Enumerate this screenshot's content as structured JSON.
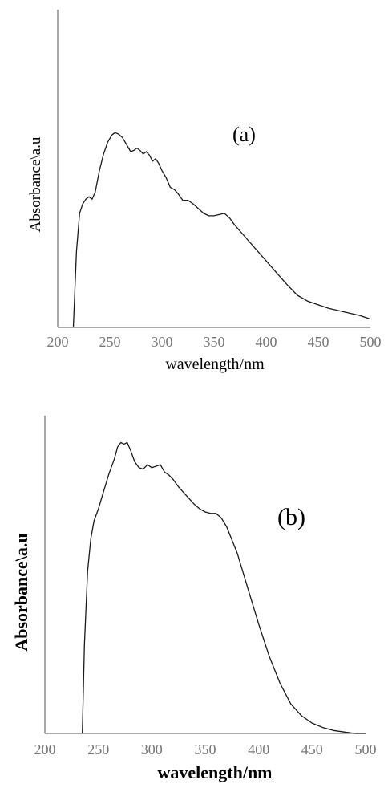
{
  "chart_data": [
    {
      "type": "line",
      "annotation": "(a)",
      "xlabel": "wavelength/nm",
      "ylabel": "Absorbance\\a.u",
      "xlim": [
        200,
        500
      ],
      "ylim": [
        0,
        1
      ],
      "xticks": [
        "200",
        "250",
        "300",
        "350",
        "400",
        "450",
        "500"
      ],
      "grid": false,
      "series": [
        {
          "x": [
            215,
            218,
            221,
            224,
            227,
            230,
            233,
            236,
            240,
            244,
            248,
            252,
            255,
            258,
            262,
            266,
            270,
            273,
            276,
            279,
            282,
            285,
            288,
            291,
            294,
            297,
            300,
            304,
            308,
            312,
            316,
            320,
            325,
            330,
            335,
            340,
            345,
            350,
            355,
            360,
            365,
            370,
            380,
            390,
            400,
            410,
            420,
            430,
            440,
            450,
            460,
            470,
            480,
            490,
            500
          ],
          "values": [
            0.0,
            0.32,
            0.48,
            0.52,
            0.54,
            0.55,
            0.54,
            0.57,
            0.66,
            0.73,
            0.78,
            0.81,
            0.82,
            0.815,
            0.8,
            0.77,
            0.74,
            0.745,
            0.755,
            0.745,
            0.73,
            0.74,
            0.725,
            0.7,
            0.71,
            0.69,
            0.66,
            0.63,
            0.59,
            0.58,
            0.56,
            0.535,
            0.535,
            0.52,
            0.5,
            0.48,
            0.47,
            0.47,
            0.475,
            0.48,
            0.46,
            0.43,
            0.38,
            0.33,
            0.28,
            0.23,
            0.18,
            0.135,
            0.11,
            0.095,
            0.08,
            0.07,
            0.06,
            0.05,
            0.035
          ]
        }
      ]
    },
    {
      "type": "line",
      "annotation": "(b)",
      "xlabel": "wavelength/nm",
      "ylabel": "Absorbance\\a.u",
      "xlim": [
        200,
        500
      ],
      "ylim": [
        0,
        1
      ],
      "xticks": [
        "200",
        "250",
        "300",
        "350",
        "400",
        "450",
        "500"
      ],
      "grid": false,
      "series": [
        {
          "x": [
            235,
            237,
            240,
            243,
            246,
            250,
            255,
            260,
            265,
            268,
            271,
            274,
            277,
            280,
            284,
            288,
            292,
            296,
            300,
            304,
            308,
            312,
            316,
            320,
            325,
            330,
            335,
            340,
            345,
            350,
            355,
            360,
            365,
            370,
            380,
            390,
            400,
            410,
            420,
            430,
            440,
            450,
            460,
            470,
            480,
            490,
            500
          ],
          "values": [
            0.0,
            0.3,
            0.55,
            0.66,
            0.72,
            0.76,
            0.82,
            0.88,
            0.93,
            0.97,
            0.985,
            0.98,
            0.985,
            0.96,
            0.92,
            0.9,
            0.895,
            0.91,
            0.9,
            0.905,
            0.91,
            0.885,
            0.875,
            0.86,
            0.835,
            0.815,
            0.795,
            0.775,
            0.76,
            0.75,
            0.745,
            0.745,
            0.73,
            0.7,
            0.61,
            0.49,
            0.37,
            0.26,
            0.17,
            0.1,
            0.06,
            0.035,
            0.02,
            0.01,
            0.005,
            0.0,
            0.0
          ]
        }
      ]
    }
  ]
}
